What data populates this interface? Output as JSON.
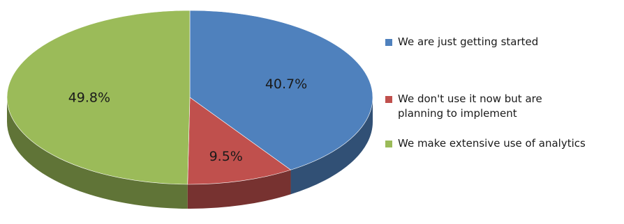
{
  "chart_data": {
    "type": "pie",
    "style": "3d",
    "title": "",
    "slices": [
      {
        "label": "We are just getting started",
        "value": 40.7,
        "value_label": "40.7%",
        "color": "#4f81bd"
      },
      {
        "label": "We don't use it now but are planning to implement",
        "value": 9.5,
        "value_label": "9.5%",
        "color": "#c0504d"
      },
      {
        "label": "We make extensive use of analytics",
        "value": 49.8,
        "value_label": "49.8%",
        "color": "#9bbb59"
      }
    ],
    "legend_position": "right"
  }
}
